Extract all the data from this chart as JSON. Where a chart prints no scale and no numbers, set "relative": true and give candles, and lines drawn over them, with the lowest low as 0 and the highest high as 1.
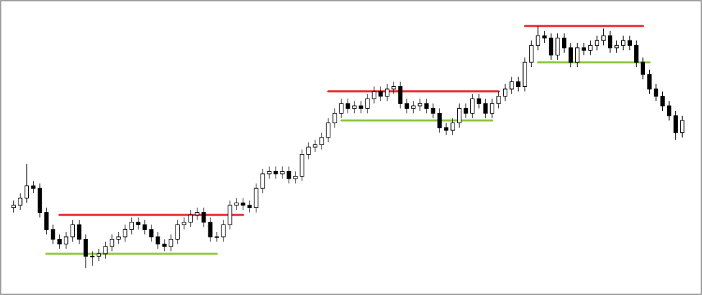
{
  "chart_data": {
    "type": "candlestick",
    "relative": true,
    "categories": [
      null,
      null,
      null,
      null,
      null,
      null,
      null,
      null,
      null,
      null,
      null,
      null,
      null,
      null,
      null,
      null,
      null,
      null,
      null,
      null,
      null,
      null,
      null,
      null,
      null,
      null,
      null,
      null,
      null,
      null,
      null,
      null,
      null,
      null,
      null,
      null,
      null,
      null,
      null,
      null,
      null,
      null,
      null,
      null,
      null,
      null,
      null,
      null,
      null,
      null,
      null,
      null,
      null,
      null,
      null,
      null,
      null,
      null,
      null,
      null,
      null,
      null,
      null,
      null,
      null,
      null,
      null,
      null,
      null,
      null,
      null,
      null,
      null,
      null,
      null,
      null,
      null,
      null,
      null,
      null,
      null,
      null,
      null,
      null,
      null,
      null,
      null,
      null,
      null,
      null,
      null,
      null,
      null,
      null,
      null,
      null,
      null,
      null,
      null,
      null,
      null,
      null,
      null
    ],
    "ohlc": [
      [
        0.25,
        0.28,
        0.23,
        0.26
      ],
      [
        0.26,
        0.31,
        0.24,
        0.29
      ],
      [
        0.29,
        0.43,
        0.27,
        0.34
      ],
      [
        0.34,
        0.36,
        0.31,
        0.33
      ],
      [
        0.33,
        0.35,
        0.21,
        0.23
      ],
      [
        0.23,
        0.25,
        0.14,
        0.16
      ],
      [
        0.16,
        0.18,
        0.1,
        0.12
      ],
      [
        0.12,
        0.14,
        0.08,
        0.1
      ],
      [
        0.1,
        0.15,
        0.08,
        0.13
      ],
      [
        0.13,
        0.2,
        0.11,
        0.18
      ],
      [
        0.18,
        0.2,
        0.1,
        0.12
      ],
      [
        0.12,
        0.14,
        0.0,
        0.05
      ],
      [
        0.05,
        0.07,
        0.01,
        0.05
      ],
      [
        0.05,
        0.08,
        0.03,
        0.06
      ],
      [
        0.06,
        0.11,
        0.04,
        0.09
      ],
      [
        0.09,
        0.14,
        0.07,
        0.12
      ],
      [
        0.12,
        0.15,
        0.1,
        0.13
      ],
      [
        0.13,
        0.18,
        0.11,
        0.16
      ],
      [
        0.16,
        0.21,
        0.14,
        0.19
      ],
      [
        0.19,
        0.21,
        0.16,
        0.18
      ],
      [
        0.18,
        0.2,
        0.14,
        0.16
      ],
      [
        0.16,
        0.18,
        0.11,
        0.13
      ],
      [
        0.13,
        0.15,
        0.08,
        0.1
      ],
      [
        0.1,
        0.12,
        0.07,
        0.09
      ],
      [
        0.09,
        0.14,
        0.07,
        0.12
      ],
      [
        0.12,
        0.2,
        0.1,
        0.18
      ],
      [
        0.18,
        0.21,
        0.16,
        0.19
      ],
      [
        0.19,
        0.24,
        0.17,
        0.22
      ],
      [
        0.22,
        0.25,
        0.2,
        0.23
      ],
      [
        0.23,
        0.25,
        0.17,
        0.19
      ],
      [
        0.19,
        0.21,
        0.11,
        0.13
      ],
      [
        0.13,
        0.15,
        0.11,
        0.13
      ],
      [
        0.13,
        0.2,
        0.11,
        0.18
      ],
      [
        0.18,
        0.28,
        0.16,
        0.26
      ],
      [
        0.26,
        0.29,
        0.24,
        0.27
      ],
      [
        0.27,
        0.29,
        0.24,
        0.26
      ],
      [
        0.26,
        0.28,
        0.23,
        0.25
      ],
      [
        0.25,
        0.35,
        0.23,
        0.33
      ],
      [
        0.33,
        0.41,
        0.31,
        0.39
      ],
      [
        0.39,
        0.42,
        0.37,
        0.4
      ],
      [
        0.4,
        0.42,
        0.37,
        0.39
      ],
      [
        0.39,
        0.42,
        0.37,
        0.4
      ],
      [
        0.4,
        0.42,
        0.35,
        0.37
      ],
      [
        0.37,
        0.4,
        0.35,
        0.38
      ],
      [
        0.38,
        0.49,
        0.36,
        0.47
      ],
      [
        0.47,
        0.52,
        0.45,
        0.5
      ],
      [
        0.5,
        0.53,
        0.48,
        0.51
      ],
      [
        0.51,
        0.56,
        0.49,
        0.54
      ],
      [
        0.54,
        0.62,
        0.52,
        0.6
      ],
      [
        0.6,
        0.66,
        0.58,
        0.64
      ],
      [
        0.64,
        0.7,
        0.62,
        0.68
      ],
      [
        0.68,
        0.7,
        0.64,
        0.66
      ],
      [
        0.66,
        0.69,
        0.64,
        0.67
      ],
      [
        0.67,
        0.69,
        0.64,
        0.66
      ],
      [
        0.66,
        0.72,
        0.64,
        0.7
      ],
      [
        0.7,
        0.75,
        0.68,
        0.73
      ],
      [
        0.73,
        0.75,
        0.69,
        0.71
      ],
      [
        0.71,
        0.76,
        0.69,
        0.74
      ],
      [
        0.74,
        0.77,
        0.72,
        0.75
      ],
      [
        0.75,
        0.77,
        0.66,
        0.68
      ],
      [
        0.68,
        0.7,
        0.64,
        0.66
      ],
      [
        0.66,
        0.69,
        0.64,
        0.67
      ],
      [
        0.67,
        0.7,
        0.65,
        0.68
      ],
      [
        0.68,
        0.7,
        0.64,
        0.66
      ],
      [
        0.66,
        0.68,
        0.62,
        0.64
      ],
      [
        0.64,
        0.66,
        0.56,
        0.58
      ],
      [
        0.58,
        0.6,
        0.55,
        0.57
      ],
      [
        0.57,
        0.62,
        0.55,
        0.6
      ],
      [
        0.6,
        0.68,
        0.58,
        0.66
      ],
      [
        0.66,
        0.68,
        0.62,
        0.64
      ],
      [
        0.64,
        0.72,
        0.62,
        0.7
      ],
      [
        0.7,
        0.72,
        0.66,
        0.68
      ],
      [
        0.68,
        0.7,
        0.62,
        0.64
      ],
      [
        0.64,
        0.7,
        0.62,
        0.68
      ],
      [
        0.68,
        0.73,
        0.66,
        0.71
      ],
      [
        0.71,
        0.76,
        0.69,
        0.74
      ],
      [
        0.74,
        0.79,
        0.72,
        0.77
      ],
      [
        0.77,
        0.79,
        0.73,
        0.75
      ],
      [
        0.75,
        0.87,
        0.73,
        0.85
      ],
      [
        0.85,
        0.94,
        0.83,
        0.92
      ],
      [
        0.92,
        1.0,
        0.9,
        0.96
      ],
      [
        0.96,
        0.98,
        0.93,
        0.95
      ],
      [
        0.95,
        0.97,
        0.86,
        0.88
      ],
      [
        0.88,
        0.97,
        0.86,
        0.95
      ],
      [
        0.95,
        0.97,
        0.89,
        0.91
      ],
      [
        0.91,
        0.93,
        0.83,
        0.85
      ],
      [
        0.85,
        0.93,
        0.83,
        0.91
      ],
      [
        0.91,
        0.93,
        0.88,
        0.9
      ],
      [
        0.9,
        0.94,
        0.88,
        0.92
      ],
      [
        0.92,
        0.96,
        0.9,
        0.94
      ],
      [
        0.94,
        0.99,
        0.92,
        0.96
      ],
      [
        0.96,
        0.98,
        0.89,
        0.91
      ],
      [
        0.91,
        0.94,
        0.89,
        0.92
      ],
      [
        0.92,
        0.96,
        0.9,
        0.94
      ],
      [
        0.94,
        0.96,
        0.9,
        0.92
      ],
      [
        0.92,
        0.94,
        0.83,
        0.85
      ],
      [
        0.85,
        0.87,
        0.78,
        0.8
      ],
      [
        0.8,
        0.82,
        0.72,
        0.74
      ],
      [
        0.74,
        0.76,
        0.69,
        0.71
      ],
      [
        0.71,
        0.73,
        0.65,
        0.67
      ],
      [
        0.67,
        0.69,
        0.61,
        0.63
      ],
      [
        0.63,
        0.65,
        0.53,
        0.56
      ],
      [
        0.56,
        0.63,
        0.54,
        0.61
      ]
    ],
    "series": [
      {
        "type": "line",
        "color": "#e8262a",
        "values": [
          null,
          null,
          null,
          null,
          null,
          null,
          null,
          0.22,
          0.22,
          0.22,
          0.22,
          0.22,
          0.22,
          0.22,
          0.22,
          0.22,
          0.22,
          0.22,
          0.22,
          0.22,
          0.22,
          0.22,
          0.22,
          0.22,
          0.22,
          0.22,
          0.22,
          0.22,
          0.22,
          0.22,
          0.22,
          0.22,
          0.22,
          0.22,
          0.22,
          0.22,
          null,
          null,
          null,
          null,
          null,
          null,
          null,
          null,
          null,
          null,
          null,
          null,
          null,
          null,
          null,
          null,
          null,
          null,
          null,
          null,
          null,
          null,
          null,
          null,
          null,
          null,
          null,
          null,
          null,
          null,
          null,
          null,
          null,
          null,
          null,
          null,
          null,
          null,
          null,
          null,
          null,
          null,
          null,
          null,
          null,
          null,
          null,
          null,
          null,
          null,
          null,
          null,
          null,
          null,
          null,
          null,
          null,
          null,
          null,
          null,
          null,
          null,
          null,
          null,
          null,
          null,
          null
        ]
      },
      {
        "type": "line",
        "color": "#8dc63f",
        "values": [
          null,
          null,
          null,
          null,
          null,
          0.06,
          0.06,
          0.06,
          0.06,
          0.06,
          0.06,
          0.06,
          0.06,
          0.06,
          0.06,
          0.06,
          0.06,
          0.06,
          0.06,
          0.06,
          0.06,
          0.06,
          0.06,
          0.06,
          0.06,
          0.06,
          0.06,
          0.06,
          0.06,
          0.06,
          0.06,
          0.06,
          null,
          null,
          null,
          null,
          null,
          null,
          null,
          null,
          null,
          null,
          null,
          null,
          null,
          null,
          null,
          null,
          null,
          null,
          null,
          null,
          null,
          null,
          null,
          null,
          null,
          null,
          null,
          null,
          null,
          null,
          null,
          null,
          null,
          null,
          null,
          null,
          null,
          null,
          null,
          null,
          null,
          null,
          null,
          null,
          null,
          null,
          null,
          null,
          null,
          null,
          null,
          null,
          null,
          null,
          null,
          null,
          null,
          null,
          null,
          null,
          null,
          null,
          null,
          null,
          null,
          null,
          null,
          null,
          null,
          null,
          null
        ]
      },
      {
        "type": "line",
        "color": "#e8262a",
        "values": [
          null,
          null,
          null,
          null,
          null,
          null,
          null,
          null,
          null,
          null,
          null,
          null,
          null,
          null,
          null,
          null,
          null,
          null,
          null,
          null,
          null,
          null,
          null,
          null,
          null,
          null,
          null,
          null,
          null,
          null,
          null,
          null,
          null,
          null,
          null,
          null,
          null,
          null,
          null,
          null,
          null,
          null,
          null,
          null,
          null,
          null,
          null,
          null,
          0.73,
          0.73,
          0.73,
          0.73,
          0.73,
          0.73,
          0.73,
          0.73,
          0.73,
          0.73,
          0.73,
          0.73,
          0.73,
          0.73,
          0.73,
          0.73,
          0.73,
          0.73,
          0.73,
          0.73,
          0.73,
          0.73,
          0.73,
          0.73,
          0.73,
          0.73,
          0.73,
          null,
          null,
          null,
          null,
          null,
          null,
          null,
          null,
          null,
          null,
          null,
          null,
          null,
          null,
          null,
          null,
          null,
          null,
          null,
          null,
          null,
          null,
          null,
          null,
          null,
          null,
          null,
          null
        ]
      },
      {
        "type": "line",
        "color": "#8dc63f",
        "values": [
          null,
          null,
          null,
          null,
          null,
          null,
          null,
          null,
          null,
          null,
          null,
          null,
          null,
          null,
          null,
          null,
          null,
          null,
          null,
          null,
          null,
          null,
          null,
          null,
          null,
          null,
          null,
          null,
          null,
          null,
          null,
          null,
          null,
          null,
          null,
          null,
          null,
          null,
          null,
          null,
          null,
          null,
          null,
          null,
          null,
          null,
          null,
          null,
          null,
          null,
          0.61,
          0.61,
          0.61,
          0.61,
          0.61,
          0.61,
          0.61,
          0.61,
          0.61,
          0.61,
          0.61,
          0.61,
          0.61,
          0.61,
          0.61,
          0.61,
          0.61,
          0.61,
          0.61,
          0.61,
          0.61,
          0.61,
          0.61,
          0.61,
          null,
          null,
          null,
          null,
          null,
          null,
          null,
          null,
          null,
          null,
          null,
          null,
          null,
          null,
          null,
          null,
          null,
          null,
          null,
          null,
          null,
          null,
          null,
          null,
          null,
          null,
          null,
          null,
          null
        ]
      },
      {
        "type": "line",
        "color": "#e8262a",
        "values": [
          null,
          null,
          null,
          null,
          null,
          null,
          null,
          null,
          null,
          null,
          null,
          null,
          null,
          null,
          null,
          null,
          null,
          null,
          null,
          null,
          null,
          null,
          null,
          null,
          null,
          null,
          null,
          null,
          null,
          null,
          null,
          null,
          null,
          null,
          null,
          null,
          null,
          null,
          null,
          null,
          null,
          null,
          null,
          null,
          null,
          null,
          null,
          null,
          null,
          null,
          null,
          null,
          null,
          null,
          null,
          null,
          null,
          null,
          null,
          null,
          null,
          null,
          null,
          null,
          null,
          null,
          null,
          null,
          null,
          null,
          null,
          null,
          null,
          null,
          null,
          null,
          null,
          null,
          1.0,
          1.0,
          1.0,
          1.0,
          1.0,
          1.0,
          1.0,
          1.0,
          1.0,
          1.0,
          1.0,
          1.0,
          1.0,
          1.0,
          1.0,
          1.0,
          1.0,
          1.0,
          1.0,
          null,
          null,
          null,
          null,
          null,
          null
        ]
      },
      {
        "type": "line",
        "color": "#8dc63f",
        "values": [
          null,
          null,
          null,
          null,
          null,
          null,
          null,
          null,
          null,
          null,
          null,
          null,
          null,
          null,
          null,
          null,
          null,
          null,
          null,
          null,
          null,
          null,
          null,
          null,
          null,
          null,
          null,
          null,
          null,
          null,
          null,
          null,
          null,
          null,
          null,
          null,
          null,
          null,
          null,
          null,
          null,
          null,
          null,
          null,
          null,
          null,
          null,
          null,
          null,
          null,
          null,
          null,
          null,
          null,
          null,
          null,
          null,
          null,
          null,
          null,
          null,
          null,
          null,
          null,
          null,
          null,
          null,
          null,
          null,
          null,
          null,
          null,
          null,
          null,
          null,
          null,
          null,
          null,
          null,
          null,
          0.85,
          0.85,
          0.85,
          0.85,
          0.85,
          0.85,
          0.85,
          0.85,
          0.85,
          0.85,
          0.85,
          0.85,
          0.85,
          0.85,
          0.85,
          0.85,
          0.85,
          0.85,
          null,
          null,
          null,
          null,
          null
        ]
      }
    ]
  }
}
